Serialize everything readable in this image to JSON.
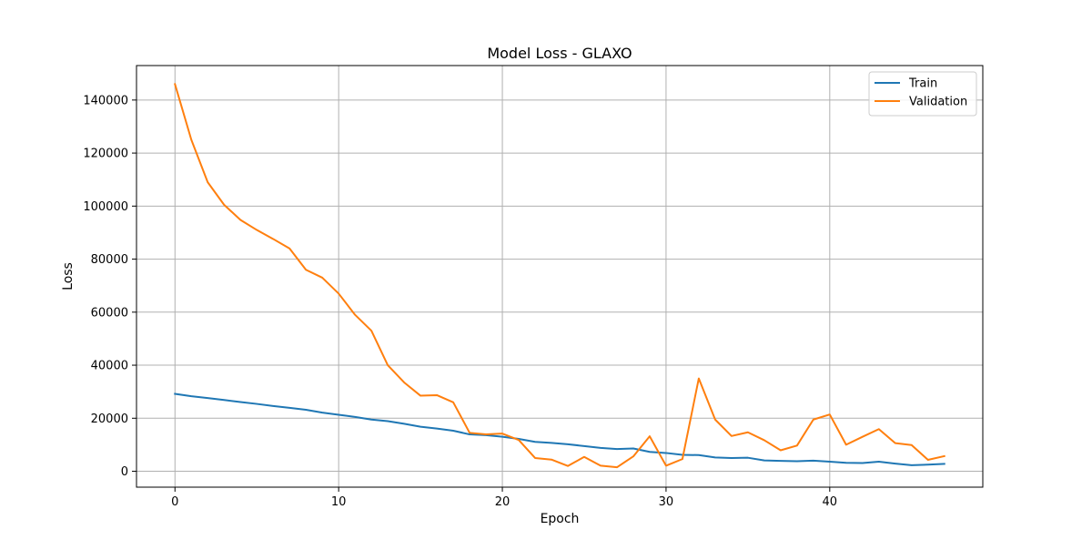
{
  "chart_data": {
    "type": "line",
    "title": "Model Loss - GLAXO",
    "xlabel": "Epoch",
    "ylabel": "Loss",
    "xlim": [
      -2.35,
      49.35
    ],
    "ylim": [
      -6000,
      153000
    ],
    "xticks": [
      0,
      10,
      20,
      30,
      40
    ],
    "yticks": [
      0,
      20000,
      40000,
      60000,
      80000,
      100000,
      120000,
      140000
    ],
    "grid": true,
    "legend_position": "top-right",
    "x": [
      0,
      1,
      2,
      3,
      4,
      5,
      6,
      7,
      8,
      9,
      10,
      11,
      12,
      13,
      14,
      15,
      16,
      17,
      18,
      19,
      20,
      21,
      22,
      23,
      24,
      25,
      26,
      27,
      28,
      29,
      30,
      31,
      32,
      33,
      34,
      35,
      36,
      37,
      38,
      39,
      40,
      41,
      42,
      43,
      44,
      45,
      46,
      47
    ],
    "series": [
      {
        "name": "Train",
        "color": "#1f77b4",
        "values": [
          29200,
          28300,
          27600,
          26900,
          26100,
          25400,
          24600,
          23900,
          23200,
          22100,
          21300,
          20500,
          19500,
          18900,
          17900,
          16800,
          16100,
          15300,
          13900,
          13600,
          13000,
          12200,
          11100,
          10700,
          10200,
          9500,
          8800,
          8400,
          8600,
          7300,
          6900,
          6200,
          6100,
          5200,
          5000,
          5100,
          4100,
          3900,
          3800,
          4000,
          3600,
          3200,
          3100,
          3600,
          2900,
          2300,
          2500,
          2800
        ]
      },
      {
        "name": "Validation",
        "color": "#ff7f0e",
        "values": [
          146000,
          125000,
          109000,
          100500,
          94800,
          91000,
          87600,
          84000,
          76000,
          73000,
          67000,
          59000,
          53000,
          40000,
          33500,
          28500,
          28700,
          26000,
          14500,
          13900,
          14200,
          11800,
          5000,
          4400,
          2000,
          5400,
          2100,
          1500,
          5600,
          13200,
          2100,
          4600,
          35000,
          19500,
          13300,
          14700,
          11700,
          7900,
          9700,
          19500,
          21400,
          10000,
          13000,
          15900,
          10600,
          9900,
          4300,
          5700
        ]
      }
    ]
  }
}
